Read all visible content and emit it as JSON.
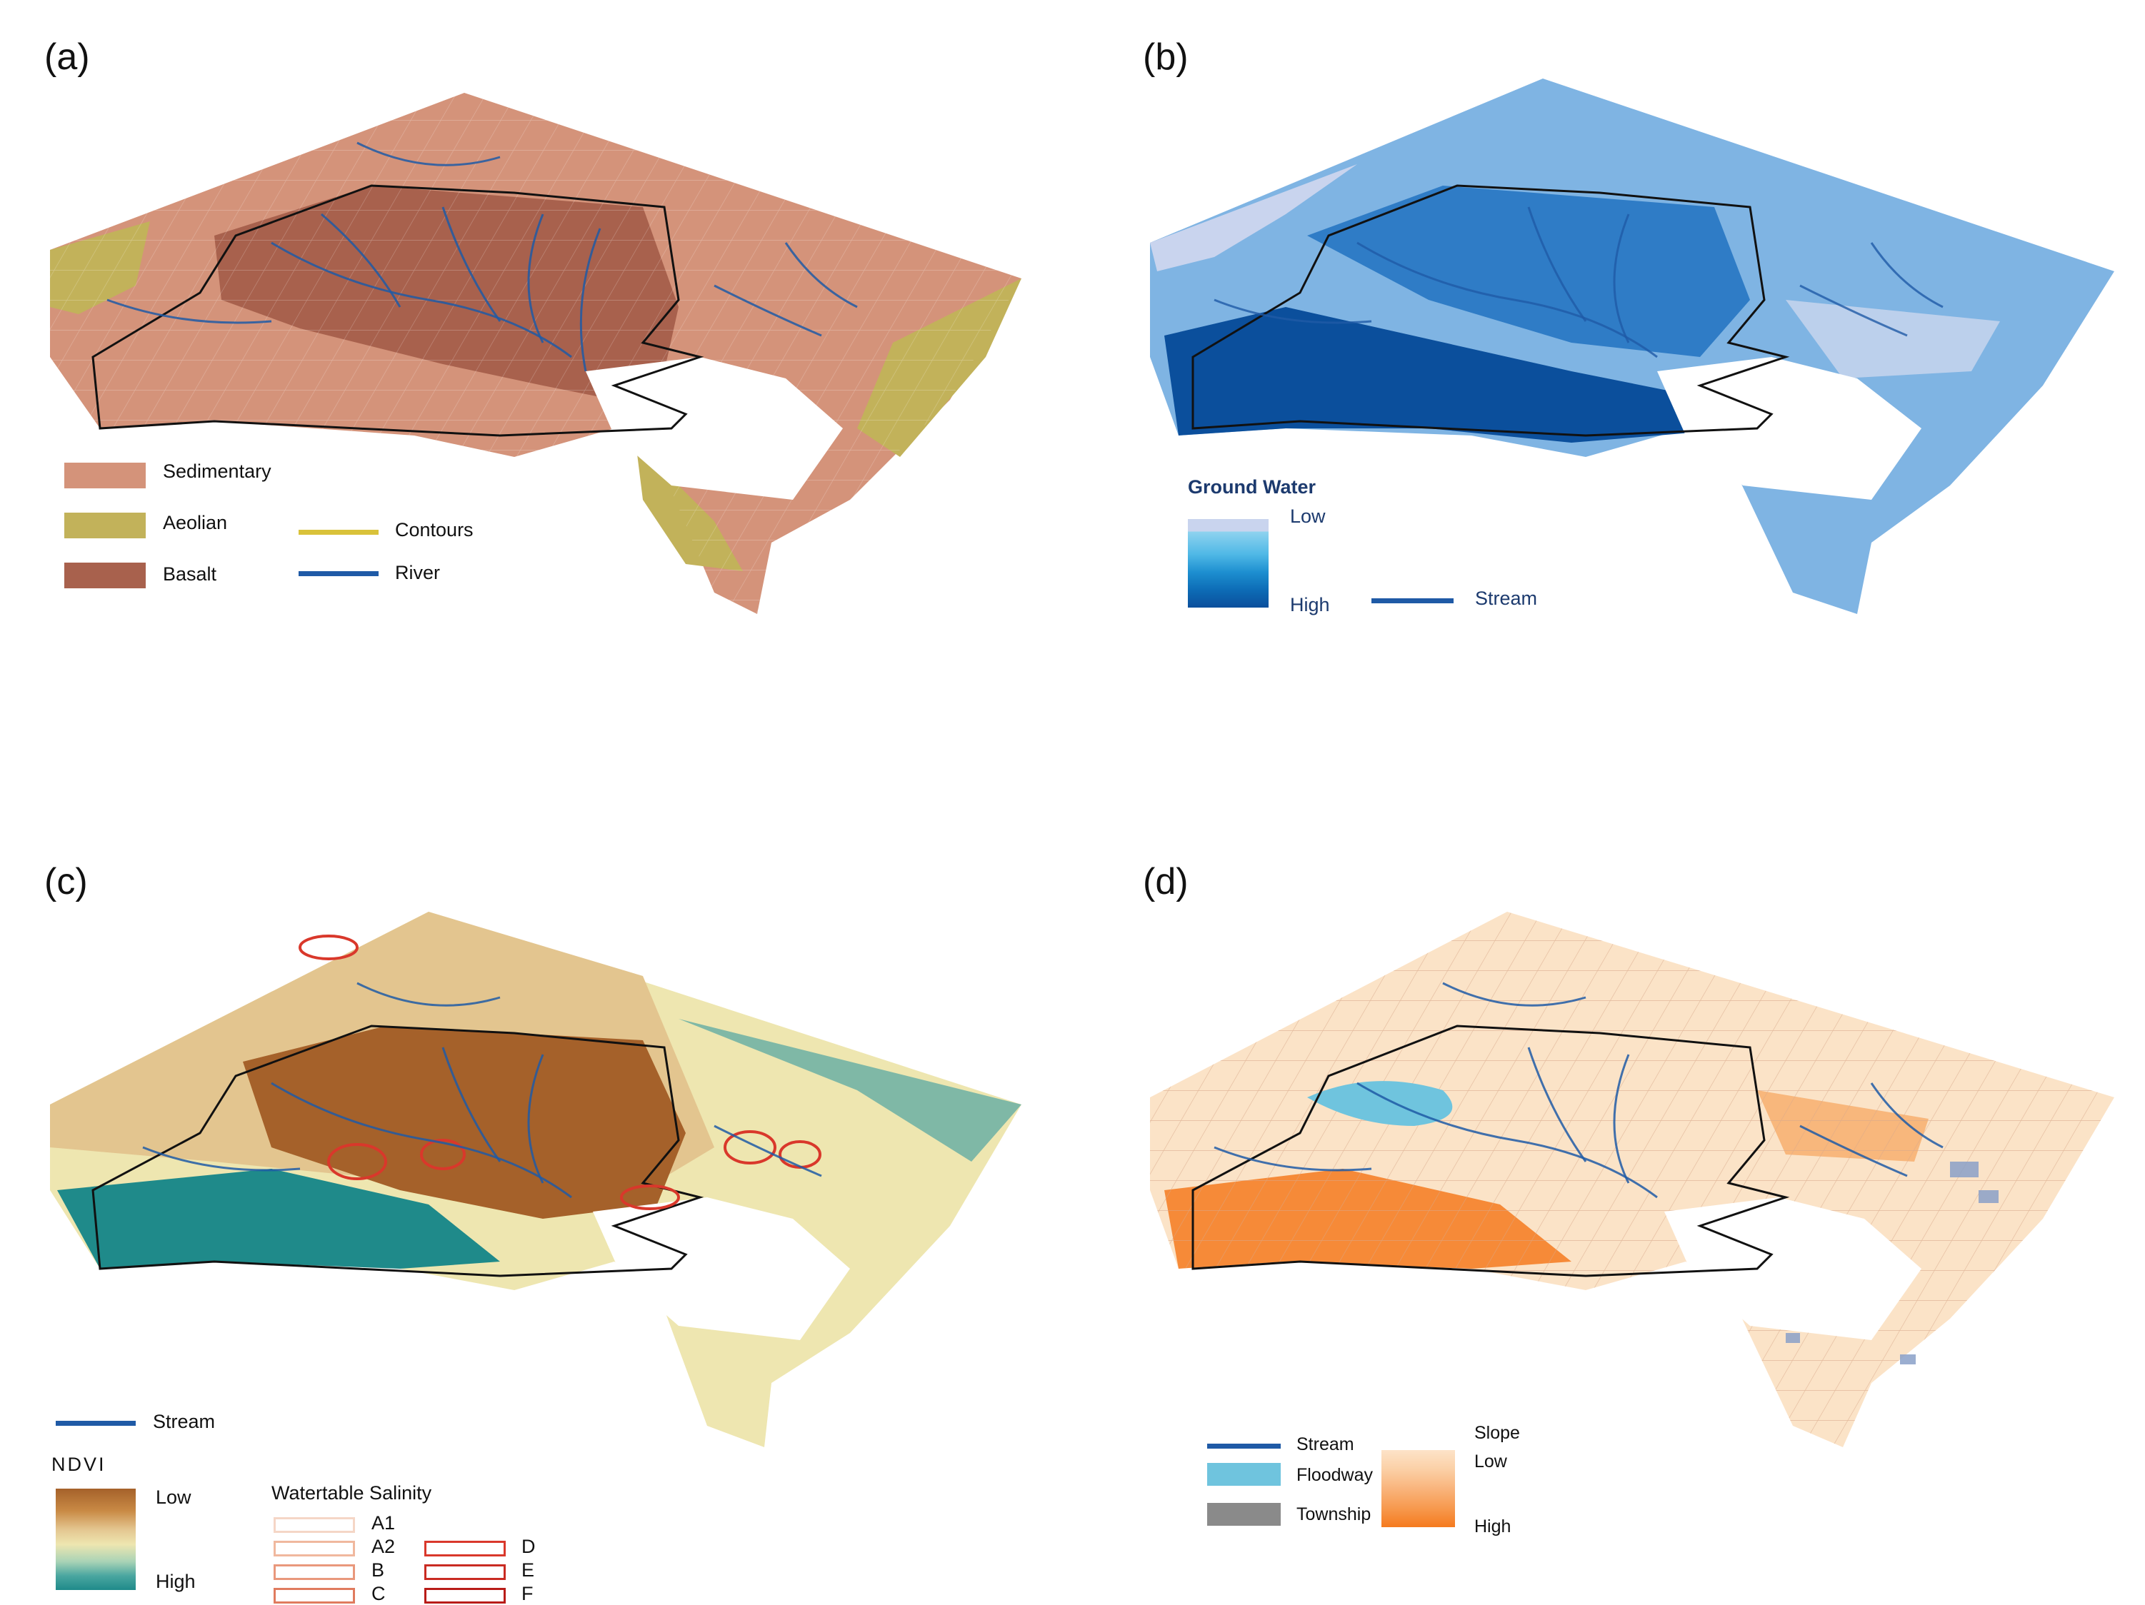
{
  "panels": {
    "a": {
      "label": "(a)",
      "legend": {
        "sedimentary": "Sedimentary",
        "aeolian": "Aeolian",
        "basalt": "Basalt",
        "contours": "Contours",
        "river": "River"
      },
      "colors": {
        "sedimentary": "#d4937a",
        "aeolian": "#c2b25a",
        "basalt": "#a8614d",
        "contours": "#d9c23a",
        "river": "#1f5aa6"
      }
    },
    "b": {
      "label": "(b)",
      "legend": {
        "title": "Ground Water",
        "low": "Low",
        "high": "High",
        "stream": "Stream"
      },
      "colors": {
        "low": "#c9d4ee",
        "high": "#0b4f9c",
        "stream": "#1f5aa6"
      }
    },
    "c": {
      "label": "(c)",
      "legend": {
        "stream": "Stream",
        "ndvi_title": "NDVI",
        "low": "Low",
        "high": "High",
        "salinity_title": "Watertable Salinity",
        "classes": [
          "A1",
          "A2",
          "B",
          "C",
          "D",
          "E",
          "F"
        ]
      },
      "colors": {
        "ndvi_low": "#a5612a",
        "ndvi_mid": "#eee6b0",
        "ndvi_high": "#1f8a8a",
        "stream": "#1f5aa6"
      }
    },
    "d": {
      "label": "(d)",
      "legend": {
        "stream": "Stream",
        "floodway": "Floodway",
        "township": "Township",
        "slope_title": "Slope",
        "low": "Low",
        "high": "High"
      },
      "colors": {
        "stream": "#1f5aa6",
        "floodway": "#6fc4de",
        "township": "#8a8a8a",
        "slope_low": "#fbe3c7",
        "slope_high": "#f57a1e"
      }
    }
  }
}
